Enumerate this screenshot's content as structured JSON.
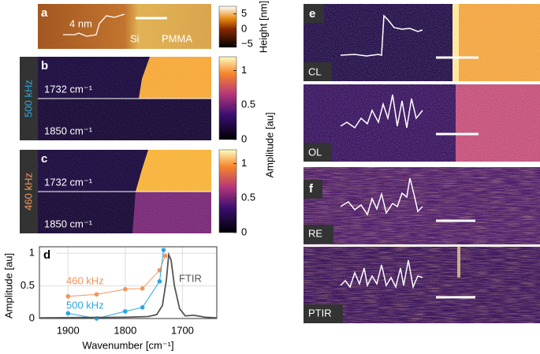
{
  "panels": {
    "a": {
      "label": "a",
      "scale_label": "4 nm",
      "left": "Si",
      "right": "PMMA"
    },
    "b": {
      "label": "b",
      "frequency": "500 kHz",
      "top": "1732 cm⁻¹",
      "bottom": "1850 cm⁻¹"
    },
    "c": {
      "label": "c",
      "frequency": "460 kHz",
      "top": "1732 cm⁻¹",
      "bottom": "1850 cm⁻¹"
    },
    "e": {
      "label": "e",
      "top": "CL",
      "bottom": "OL"
    },
    "f": {
      "label": "f",
      "top": "RE",
      "bottom": "PTIR"
    }
  },
  "colorbars": [
    {
      "label": "Height [nm]",
      "lim": [
        -6,
        7.5
      ],
      "ticks": [
        5,
        0,
        {
          "value": -5,
          "label": "−5"
        }
      ]
    },
    {
      "label": "Amplitude [au]",
      "lim": [
        0,
        1.2
      ],
      "ticks": [
        1,
        0.5,
        0
      ]
    },
    {
      "lim": [
        0,
        1.2
      ],
      "ticks": [
        1,
        0.5,
        0
      ]
    }
  ],
  "chart_data": {
    "type": "line",
    "label": "d",
    "xlabel": "Wavenumber [cm⁻¹]",
    "ylabel": "Amplitude [au]",
    "xlim": [
      1950,
      1640
    ],
    "xticks": [
      1900,
      1800,
      1700
    ],
    "ylim": [
      0,
      1.1
    ],
    "yticks": [
      0,
      0.5,
      1
    ],
    "grid": true,
    "series": [
      {
        "name": "460 kHz",
        "color": "#f0955a",
        "markers": true,
        "x": [
          1900,
          1850,
          1800,
          1770,
          1740,
          1730
        ],
        "values": [
          0.34,
          0.37,
          0.45,
          0.46,
          0.74,
          0.96
        ]
      },
      {
        "name": "500 kHz",
        "color": "#2aa7e0",
        "markers": true,
        "x": [
          1900,
          1850,
          1800,
          1770,
          1740,
          1733
        ],
        "values": [
          0.08,
          0,
          0.11,
          0.17,
          0.57,
          1.05
        ]
      },
      {
        "name": "FTIR",
        "color": "#555555",
        "markers": false,
        "x": [
          1950,
          1800,
          1760,
          1745,
          1735,
          1728,
          1724,
          1720,
          1714,
          1705,
          1695,
          1680,
          1660,
          1640
        ],
        "values": [
          0.01,
          0.02,
          0.03,
          0.06,
          0.2,
          0.6,
          0.98,
          0.9,
          0.5,
          0.15,
          0.04,
          0.05,
          0.02,
          0.01
        ]
      }
    ]
  }
}
